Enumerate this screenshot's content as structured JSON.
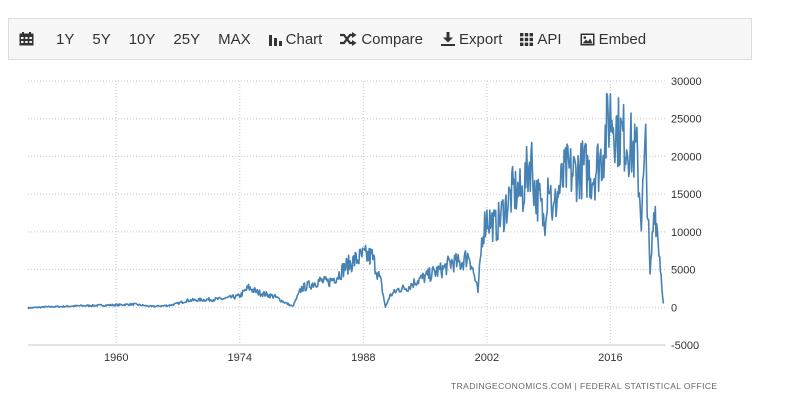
{
  "toolbar": {
    "calendar_icon": "calendar-icon",
    "ranges": [
      "1Y",
      "5Y",
      "10Y",
      "25Y",
      "MAX"
    ],
    "chart_label": "Chart",
    "compare_label": "Compare",
    "export_label": "Export",
    "api_label": "API",
    "embed_label": "Embed"
  },
  "credits": "TRADINGECONOMICS.COM  |  FEDERAL STATISTICAL OFFICE",
  "chart_data": {
    "type": "line",
    "xlabel": "",
    "ylabel": "",
    "x_ticks": [
      1960,
      1974,
      1988,
      2002,
      2016
    ],
    "y_ticks": [
      30000,
      25000,
      20000,
      15000,
      10000,
      5000,
      0,
      -5000
    ],
    "xlim": [
      1950,
      2022.3
    ],
    "ylim": [
      -5000,
      30000
    ],
    "y_axis_position": "right",
    "grid": "dotted",
    "color": "#4682b4",
    "series": [
      {
        "x": [
          1950,
          1952,
          1954,
          1956,
          1958,
          1960,
          1962,
          1964,
          1966,
          1967,
          1968,
          1970,
          1972,
          1974,
          1975,
          1976,
          1978,
          1979,
          1980,
          1981,
          1982,
          1983,
          1984,
          1985,
          1986,
          1987,
          1988,
          1989,
          1990,
          1990.5,
          1991,
          1992,
          1993,
          1994,
          1995,
          1996,
          1997,
          1998,
          1999,
          2000,
          2001,
          2001.5,
          2002,
          2003,
          2004,
          2005,
          2006,
          2007,
          2007.5,
          2008,
          2008.5,
          2009,
          2009.5,
          2010,
          2011,
          2012,
          2013,
          2014,
          2015,
          2016,
          2017,
          2018,
          2019,
          2019.5,
          2020,
          2020.5,
          2021,
          2021.5,
          2022
        ],
        "values": [
          -100,
          50,
          100,
          200,
          250,
          300,
          400,
          100,
          250,
          500,
          900,
          1000,
          1100,
          1500,
          2600,
          2000,
          1400,
          700,
          100,
          2500,
          3000,
          3500,
          3300,
          4100,
          5400,
          6200,
          6800,
          6700,
          3300,
          0,
          1500,
          2400,
          2600,
          3500,
          4000,
          4600,
          5000,
          6000,
          5800,
          7000,
          2000,
          10000,
          12000,
          10700,
          13000,
          15500,
          15000,
          20000,
          15000,
          14000,
          11000,
          18200,
          12000,
          15000,
          18000,
          17800,
          18500,
          17500,
          20000,
          26000,
          23000,
          22000,
          20000,
          12000,
          21000,
          4000,
          14000,
          8000,
          500
        ]
      }
    ]
  }
}
